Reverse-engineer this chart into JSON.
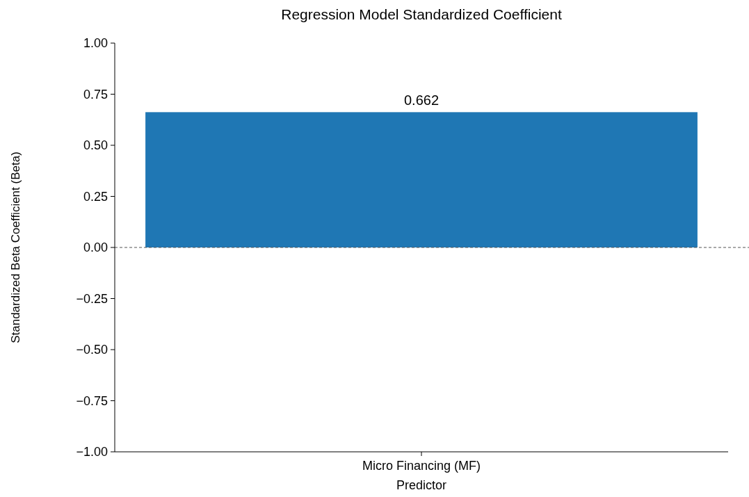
{
  "chart_data": {
    "type": "bar",
    "title": "Regression Model Standardized Coefficient",
    "xlabel": "Predictor",
    "ylabel": "Standardized Beta Coefficient (Beta)",
    "categories": [
      "Micro Financing (MF)"
    ],
    "values": [
      0.662
    ],
    "color": "#1f77b4",
    "ylim": [
      -1,
      1
    ],
    "yticks": [
      {
        "value": -1,
        "label": "−1.00"
      },
      {
        "value": -0.75,
        "label": "−0.75"
      },
      {
        "value": -0.5,
        "label": "−0.50"
      },
      {
        "value": -0.25,
        "label": "−0.25"
      },
      {
        "value": 0,
        "label": "0.00"
      },
      {
        "value": 0.25,
        "label": "0.25"
      },
      {
        "value": 0.5,
        "label": "0.50"
      },
      {
        "value": 0.75,
        "label": "0.75"
      },
      {
        "value": 1,
        "label": "1.00"
      }
    ],
    "ref_lines": [
      {
        "axis": "y",
        "value": 0,
        "label": null,
        "color": "#555555",
        "line_style": "dashed"
      }
    ],
    "data_labels": true,
    "grid": false
  }
}
